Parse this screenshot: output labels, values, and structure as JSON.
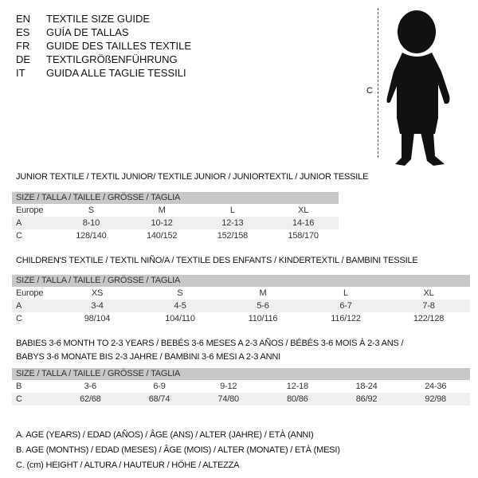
{
  "titles": [
    {
      "code": "EN",
      "text": "TEXTILE SIZE GUIDE"
    },
    {
      "code": "ES",
      "text": "GUÍA DE TALLAS"
    },
    {
      "code": "FR",
      "text": "GUIDE DES TAILLES TEXTILE"
    },
    {
      "code": "DE",
      "text": "TEXTILGRÖßENFÜHRUNG"
    },
    {
      "code": "IT",
      "text": "GUIDA ALLE TAGLIE TESSILI"
    }
  ],
  "figure": {
    "measure_label": "C"
  },
  "junior": {
    "title": "JUNIOR TEXTILE / TEXTIL JUNIOR/ TEXTILE JUNIOR / JUNIORTEXTIL / JUNIOR TESSILE",
    "header": "SIZE / TALLA / TAILLE / GRÖSSE / TAGLIA",
    "rows": [
      {
        "label": "Europe",
        "cells": [
          "S",
          "M",
          "L",
          "XL"
        ]
      },
      {
        "label": "A",
        "cells": [
          "8-10",
          "10-12",
          "12-13",
          "14-16"
        ]
      },
      {
        "label": "C",
        "cells": [
          "128/140",
          "140/152",
          "152/158",
          "158/170"
        ]
      }
    ]
  },
  "children": {
    "title": "CHILDREN'S TEXTILE / TEXTIL NIÑO/A / TEXTILE DES ENFANTS / KINDERTEXTIL / BAMBINI TESSILE",
    "header": "SIZE / TALLA / TAILLE / GRÖSSE / TAGLIA",
    "rows": [
      {
        "label": "Europe",
        "cells": [
          "XS",
          "S",
          "M",
          "L",
          "XL"
        ]
      },
      {
        "label": "A",
        "cells": [
          "3-4",
          "4-5",
          "5-6",
          "6-7",
          "7-8"
        ]
      },
      {
        "label": "C",
        "cells": [
          "98/104",
          "104/110",
          "110/116",
          "116/122",
          "122/128"
        ]
      }
    ]
  },
  "babies": {
    "title_line1": "BABIES 3-6 MONTH TO 2-3 YEARS / BEBÉS 3-6 MESES A 2-3 AÑOS / BÉBÉS 3-6 MOIS À 2-3 ANS /",
    "title_line2": "BABYS 3-6 MONATE BIS 2-3 JAHRE / BAMBINI 3-6 MESI A 2-3 ANNI",
    "header": "SIZE / TALLA / TAILLE / GRÖSSE / TAGLIA",
    "rows": [
      {
        "label": "B",
        "cells": [
          "3-6",
          "6-9",
          "9-12",
          "12-18",
          "18-24",
          "24-36"
        ]
      },
      {
        "label": "C",
        "cells": [
          "62/68",
          "68/74",
          "74/80",
          "80/86",
          "86/92",
          "92/98"
        ]
      }
    ]
  },
  "legend": [
    "A. AGE (YEARS) / EDAD (AÑOS) / ÂGE (ANS) / ALTER (JAHRE) / ETÀ (ANNI)",
    "B. AGE (MONTHS) / EDAD (MESES) / ÂGE (MOIS) / ALTER (MONATE) / ETÀ (MESI)",
    "C. (cm) HEIGHT / ALTURA / HAUTEUR / HÖHE / ALTEZZA"
  ]
}
